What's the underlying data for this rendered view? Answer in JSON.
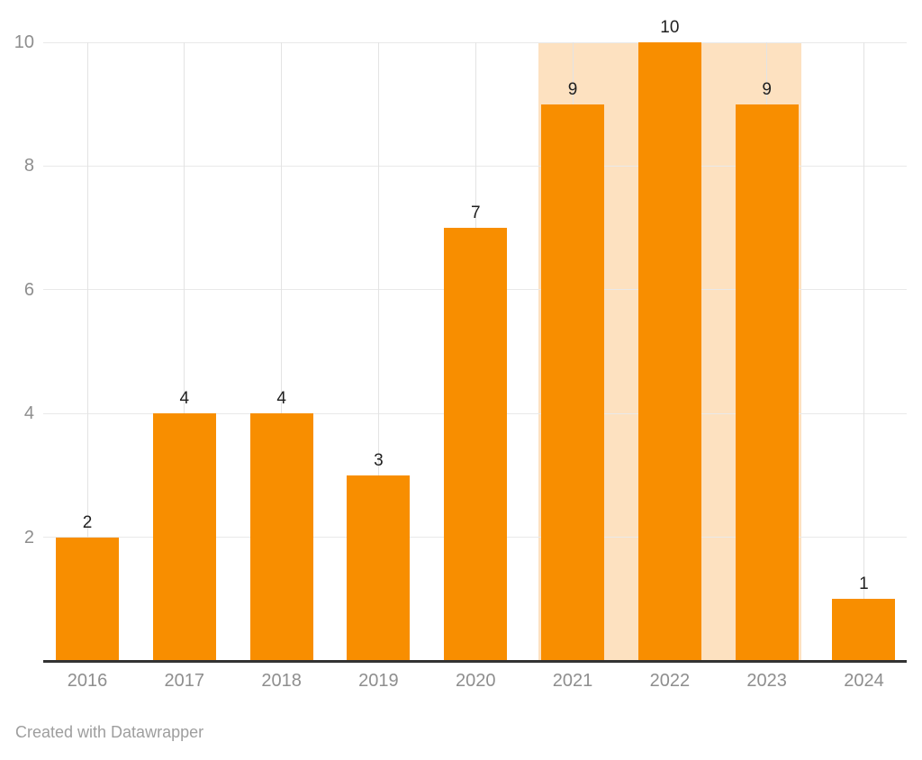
{
  "chart_data": {
    "type": "bar",
    "title": "",
    "categories": [
      "2016",
      "2017",
      "2018",
      "2019",
      "2020",
      "2021",
      "2022",
      "2023",
      "2024"
    ],
    "values": [
      2,
      4,
      4,
      3,
      7,
      9,
      10,
      9,
      1
    ],
    "value_labels": [
      "2",
      "4",
      "4",
      "3",
      "7",
      "9",
      "10",
      "9",
      "1"
    ],
    "y_ticks": [
      "2",
      "4",
      "6",
      "8",
      "10"
    ],
    "ylim": [
      0,
      10
    ],
    "xlabel": "",
    "ylabel": "",
    "grid": "on",
    "legend": "none",
    "bar_color": "#f88e00",
    "highlight_range": {
      "from_category": "2021",
      "to_category": "2023",
      "color": "#fde1c0"
    },
    "value_label_color": "#1f1f1f",
    "axis_label_color": "#8e8e8e",
    "axis_line_color": "#333333"
  },
  "footer": {
    "credit": "Created with Datawrapper"
  }
}
